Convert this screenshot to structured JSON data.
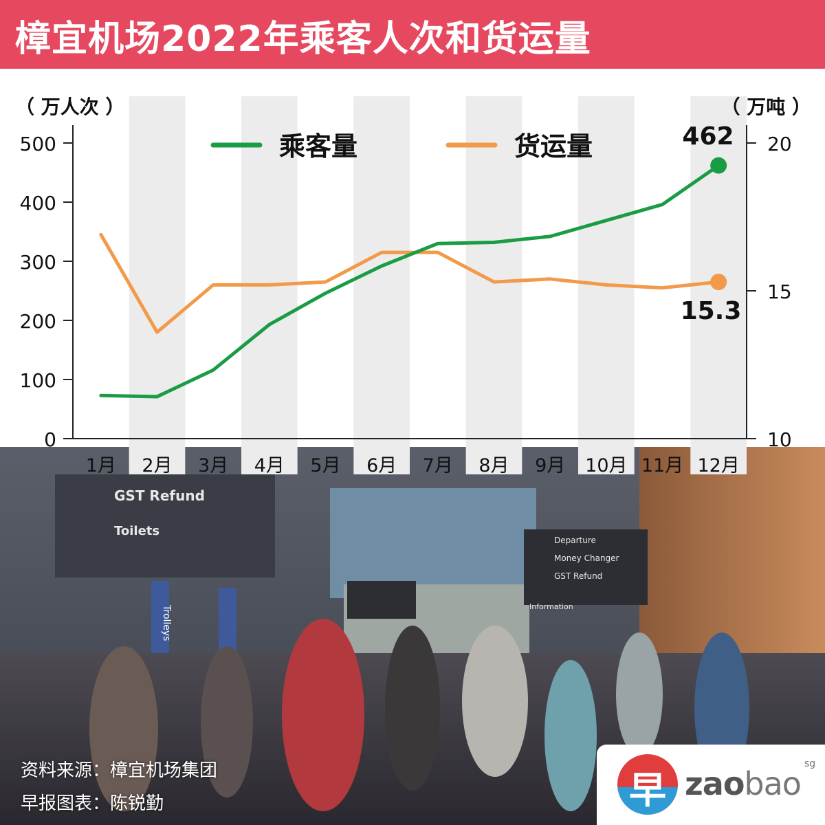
{
  "title": "樟宜机场2022年乘客人次和货运量",
  "colors": {
    "title_bg": "#e6495f",
    "passenger": "#1a9c45",
    "cargo": "#f39a4a",
    "band": "#ececec"
  },
  "chart_data": {
    "type": "line",
    "categories": [
      "1月",
      "2月",
      "3月",
      "4月",
      "5月",
      "6月",
      "7月",
      "8月",
      "9月",
      "10月",
      "11月",
      "12月"
    ],
    "left_axis_label": "（ 万人次 ）",
    "right_axis_label": "（ 万吨 ）",
    "left_ticks": [
      0,
      100,
      200,
      300,
      400,
      500
    ],
    "right_ticks": [
      10,
      15,
      20
    ],
    "ylim_left": [
      0,
      500
    ],
    "ylim_right": [
      10,
      20
    ],
    "grid": false,
    "legend_position": "top",
    "series": [
      {
        "name": "乘客量",
        "axis": "left",
        "color": "#1a9c45",
        "values": [
          73,
          71,
          116,
          193,
          246,
          292,
          330,
          332,
          342,
          369,
          396,
          462
        ],
        "end_label": "462"
      },
      {
        "name": "货运量",
        "axis": "right",
        "color": "#f39a4a",
        "values": [
          16.9,
          13.6,
          15.2,
          15.2,
          15.3,
          16.3,
          16.3,
          15.3,
          15.4,
          15.2,
          15.1,
          15.3
        ],
        "end_label": "15.3"
      }
    ]
  },
  "source": {
    "line1": "资料来源：樟宜机场集团",
    "line2": "早报图表：陈锐勤"
  },
  "logo": {
    "char": "早",
    "word_a": "zao",
    "word_b": "bao",
    "superscript": "sg"
  },
  "photo_signs": {
    "gst_refund": "GST Refund",
    "toilets": "Toilets",
    "departure": "Departure",
    "money_changer": "Money Changer",
    "gst_refund_2": "GST Refund",
    "information": "Information",
    "trolleys": "Trolleys"
  }
}
